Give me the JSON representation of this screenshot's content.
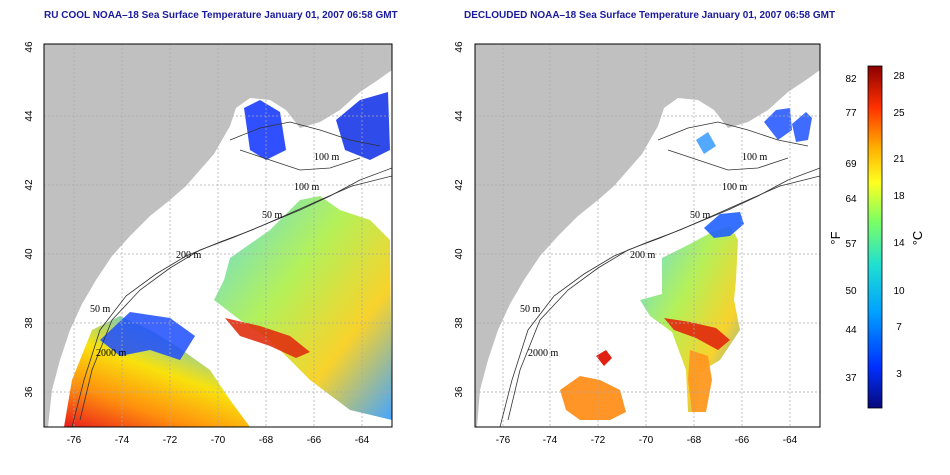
{
  "panels": [
    {
      "id": "left",
      "title": "RU COOL NOAA–18 Sea Surface Temperature January 01, 2007 06:58 GMT",
      "x_ticks": [
        "-76",
        "-74",
        "-72",
        "-70",
        "-68",
        "-66",
        "-64"
      ],
      "y_ticks": [
        "36",
        "38",
        "40",
        "42",
        "44",
        "46"
      ],
      "contour_labels": [
        "100 m",
        "100 m",
        "50 m",
        "200 m",
        "50 m",
        "2000 m"
      ]
    },
    {
      "id": "right",
      "title": "DECLOUDED NOAA–18 Sea Surface Temperature January 01, 2007 06:58 GMT",
      "x_ticks": [
        "-76",
        "-74",
        "-72",
        "-70",
        "-68",
        "-66",
        "-64"
      ],
      "y_ticks": [
        "36",
        "38",
        "40",
        "42",
        "44",
        "46"
      ],
      "contour_labels": [
        "100 m",
        "100 m",
        "50 m",
        "200 m",
        "50 m",
        "2000 m"
      ]
    }
  ],
  "colorbar": {
    "fahrenheit_unit": "°F",
    "celsius_unit": "°C",
    "fahrenheit_ticks": [
      "82",
      "77",
      "69",
      "64",
      "57",
      "50",
      "44",
      "37"
    ],
    "celsius_ticks": [
      "28",
      "25",
      "21",
      "18",
      "14",
      "10",
      "7",
      "3"
    ]
  },
  "colors": {
    "land": "#c0c0c0",
    "title": "#1a1a9c",
    "grid": "#aaaaaa"
  }
}
